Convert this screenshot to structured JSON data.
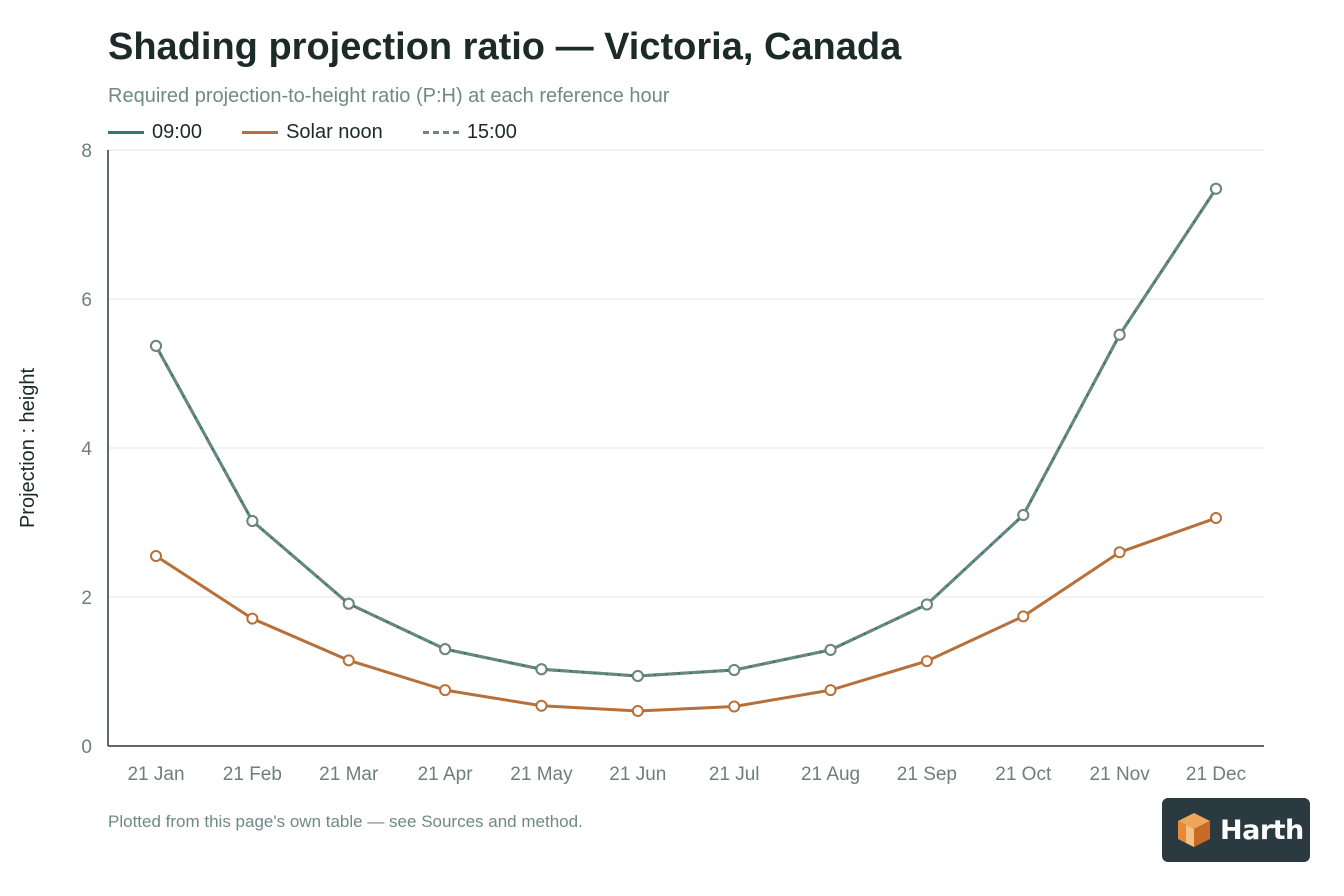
{
  "title": "Shading projection ratio — Victoria, Canada",
  "subtitle": "Required projection-to-height ratio (P:H) at each reference hour",
  "footnote": "Plotted from this page's own table — see Sources and method.",
  "logo": {
    "text": "Harth"
  },
  "legend": [
    {
      "label": "09:00",
      "color": "#2e7d72",
      "style": "solid"
    },
    {
      "label": "Solar noon",
      "color": "#b8703a",
      "style": "solid"
    },
    {
      "label": "15:00",
      "color": "#6e8580",
      "style": "dashed"
    }
  ],
  "chart_data": {
    "type": "line",
    "ylabel": "Projection : height",
    "ylim": [
      0,
      8
    ],
    "yticks": [
      0,
      2,
      4,
      6,
      8
    ],
    "grid": true,
    "legend_placement": "top-left",
    "categories": [
      "21 Jan",
      "21 Feb",
      "21 Mar",
      "21 Apr",
      "21 May",
      "21 Jun",
      "21 Jul",
      "21 Aug",
      "21 Sep",
      "21 Oct",
      "21 Nov",
      "21 Dec"
    ],
    "series": [
      {
        "name": "09:00",
        "color": "#2e7d72",
        "dashed": false,
        "values": [
          5.37,
          3.02,
          1.91,
          1.3,
          1.03,
          0.94,
          1.02,
          1.29,
          1.9,
          3.1,
          5.52,
          7.48
        ]
      },
      {
        "name": "Solar noon",
        "color": "#b8703a",
        "dashed": false,
        "values": [
          2.55,
          1.71,
          1.15,
          0.75,
          0.54,
          0.47,
          0.53,
          0.75,
          1.14,
          1.74,
          2.6,
          3.06
        ]
      },
      {
        "name": "15:00",
        "color": "#6e8580",
        "dashed": true,
        "values": [
          5.37,
          3.02,
          1.91,
          1.3,
          1.03,
          0.94,
          1.02,
          1.29,
          1.9,
          3.1,
          5.52,
          7.48
        ]
      }
    ]
  }
}
